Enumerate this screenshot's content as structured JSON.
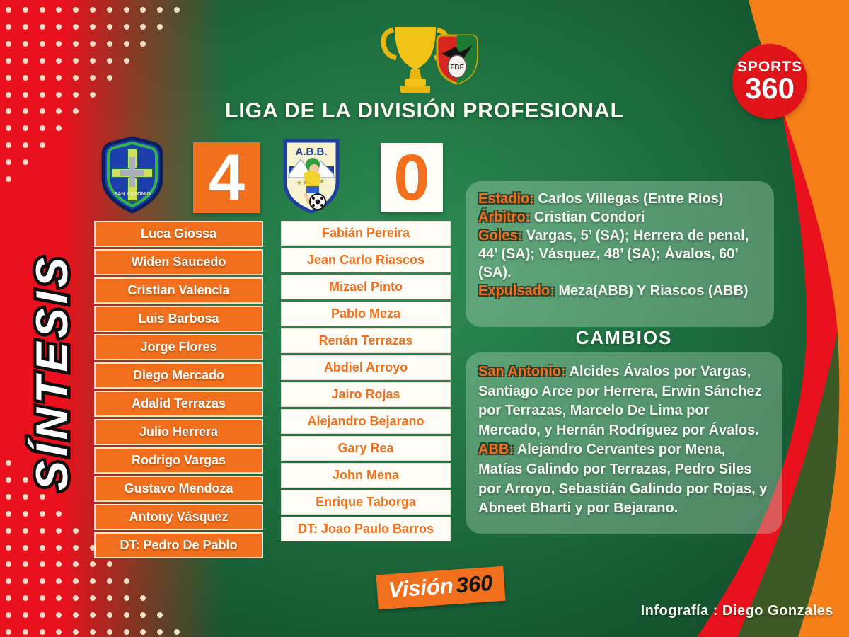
{
  "title": "LIGA DE LA DIVISIÓN PROFESIONAL",
  "side_label": "SÍNTESIS",
  "scoreboard": {
    "home_badge_label": "SAN ANTONIO",
    "away_badge_label": "A.B.B.",
    "home_score": "4",
    "away_score": "0"
  },
  "lineups": {
    "home": [
      "Luca Giossa",
      "Widen Saucedo",
      "Cristian Valencia",
      "Luis Barbosa",
      "Jorge Flores",
      "Diego Mercado",
      "Adalid Terrazas",
      "Julio Herrera",
      "Rodrigo Vargas",
      "Gustavo Mendoza",
      "Antony Vásquez",
      "DT: Pedro De Pablo"
    ],
    "away": [
      "Fabián Pereira",
      "Jean Carlo Riascos",
      "Mizael Pinto",
      "Pablo Meza",
      "Renán Terrazas",
      "Abdiel Arroyo",
      "Jairo Rojas",
      "Alejandro Bejarano",
      "Gary Rea",
      "John Mena",
      "Enrique Taborga",
      "DT: Joao Paulo Barros"
    ]
  },
  "match_info": [
    {
      "label": "Estadio:",
      "text": " Carlos Villegas (Entre Ríos)"
    },
    {
      "label": "Árbitro:",
      "text": " Cristian Condori"
    },
    {
      "label": "Goles:",
      "text": " Vargas, 5’ (SA); Herrera de penal, 44’ (SA); Vásquez, 48’ (SA); Ávalos, 60’ (SA)."
    },
    {
      "label": "Expulsado:",
      "text": " Meza(ABB) Y Riascos (ABB)"
    }
  ],
  "cambios": {
    "heading": "CAMBIOS",
    "entries": [
      {
        "label": "San Antonio:",
        "text": " Alcides Ávalos por Vargas, Santiago Arce por Herrera, Erwin Sánchez por Terrazas, Marcelo De Lima por Mercado, y Hernán Rodríguez por Ávalos."
      },
      {
        "label": "ABB:",
        "text": " Alejandro Cervantes por Mena, Matías Galindo por Terrazas, Pedro Siles por Arroyo, Sebastián Galindo por Rojas, y Abneet Bharti y por Bejarano."
      }
    ]
  },
  "branding": {
    "sports360_line1": "SPORTS",
    "sports360_line2": "360",
    "vision360_part1": "Visión",
    "vision360_part2": "360",
    "credit": "Infografía : Diego Gonzales"
  },
  "colors": {
    "accent_orange": "#F2701D",
    "bright_red": "#E8111D",
    "dark_green": "#0F4526",
    "olive_band_green": "#3D5A26",
    "badge_circle_red": "#E01319"
  }
}
